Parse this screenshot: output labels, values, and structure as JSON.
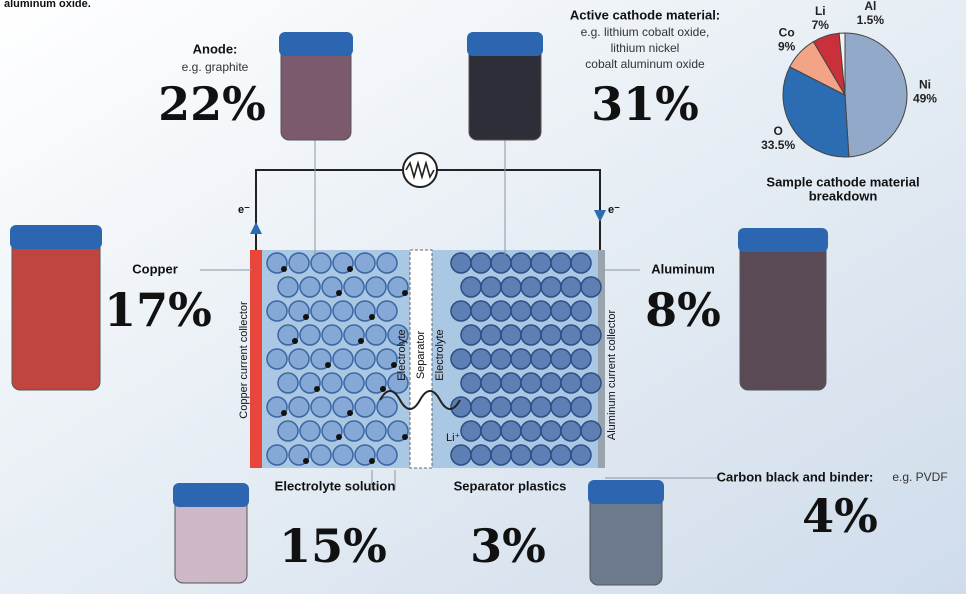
{
  "header": "aluminum oxide.",
  "anode": {
    "label": "Anode:",
    "sub": [
      "e.g. graphite"
    ],
    "percent": "22%"
  },
  "cathode": {
    "label": "Active cathode material:",
    "sub": [
      "e.g. lithium cobalt oxide,",
      "lithium nickel",
      "cobalt aluminum oxide"
    ],
    "percent": "31%"
  },
  "copper": {
    "label": "Copper",
    "percent": "17%"
  },
  "aluminum": {
    "label": "Aluminum",
    "percent": "8%"
  },
  "electrolyte": {
    "label": "Electrolyte solution",
    "percent": "15%"
  },
  "separator": {
    "label": "Separator plastics",
    "percent": "3%"
  },
  "carbon": {
    "label": "Carbon black and binder:",
    "sub": "e.g. PVDF",
    "percent": "4%"
  },
  "cell": {
    "copper_collector": "Copper current collector",
    "aluminum_collector": "Aluminum current collector",
    "electrolyte_left": "Electrolyte",
    "separator": "Separator",
    "electrolyte_right": "Electrolyte",
    "ion": "Li⁺",
    "electron_left": "e⁻",
    "electron_right": "e⁻"
  },
  "chart_data": {
    "type": "pie",
    "title": [
      "Sample cathode material",
      "breakdown"
    ],
    "categories": [
      "Ni",
      "O",
      "Co",
      "Li",
      "Al"
    ],
    "values": [
      49,
      33.5,
      9,
      7,
      1.5
    ],
    "value_labels": [
      "49%",
      "33.5%",
      "9%",
      "7%",
      "1.5%"
    ],
    "colors": [
      "#93a9c9",
      "#2b6cb3",
      "#f3a386",
      "#c9303a",
      "#f2f2f2"
    ]
  }
}
